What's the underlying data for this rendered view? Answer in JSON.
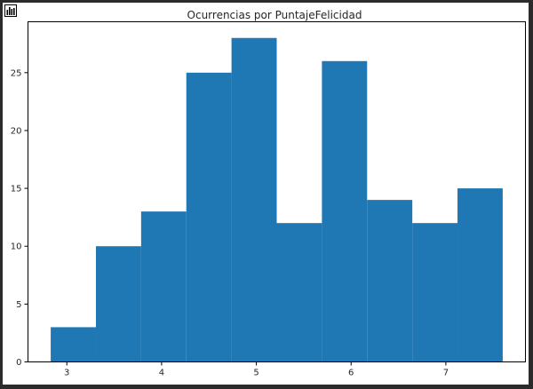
{
  "chart_data": {
    "type": "bar",
    "title": "Ocurrencias por PuntajeFelicidad",
    "xlabel": "",
    "ylabel": "",
    "bin_edges": [
      2.83,
      3.307,
      3.784,
      4.261,
      4.738,
      5.215,
      5.692,
      6.169,
      6.646,
      7.123,
      7.6
    ],
    "values": [
      3,
      10,
      13,
      25,
      28,
      12,
      26,
      14,
      12,
      15
    ],
    "xlim": [
      2.59,
      7.84
    ],
    "ylim": [
      0,
      29.4
    ],
    "xticks": [
      3,
      4,
      5,
      6,
      7
    ],
    "xtick_labels": [
      "3",
      "4",
      "5",
      "6",
      "7"
    ],
    "yticks": [
      0,
      5,
      10,
      15,
      20,
      25
    ],
    "ytick_labels": [
      "0",
      "5",
      "10",
      "15",
      "20",
      "25"
    ],
    "bar_color": "#1f77b4",
    "grid": false,
    "legend": "none"
  },
  "header": {
    "icon": "bar-chart-icon"
  }
}
